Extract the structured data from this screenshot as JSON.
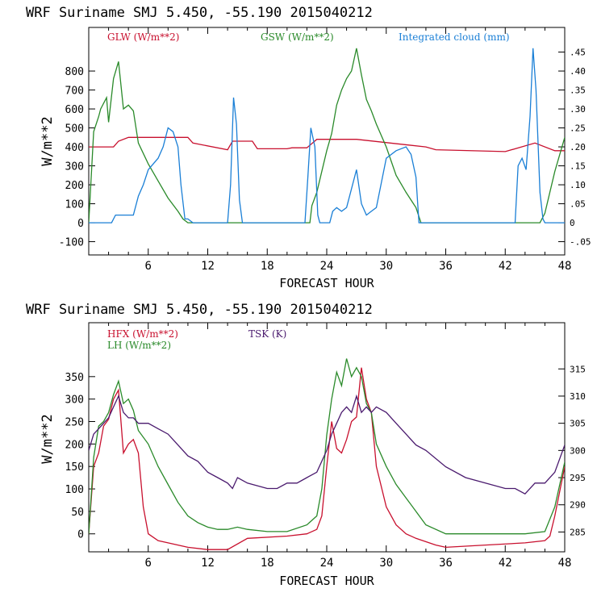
{
  "chart_data": [
    {
      "type": "line",
      "title": "WRF   Suriname SMJ   5.450, -55.190  2015040212",
      "xlabel": "FORECAST HOUR",
      "ylabel": "W/m**2",
      "xlim": [
        0,
        48
      ],
      "ylim": [
        -170,
        1030
      ],
      "y2lim": [
        -0.085,
        0.515
      ],
      "x_ticks": [
        6,
        12,
        18,
        24,
        30,
        36,
        42,
        48
      ],
      "x_tick_labels": [
        "6",
        "12",
        "18",
        "24",
        "30",
        "36",
        "42",
        "48"
      ],
      "y_ticks": [
        800,
        700,
        600,
        500,
        400,
        300,
        200,
        100,
        0,
        -100
      ],
      "y_tick_labels": [
        "800",
        "700",
        "600",
        "500",
        "400",
        "300",
        "200",
        "100",
        "0",
        "-100"
      ],
      "y2_ticks": [
        0.45,
        0.4,
        0.35,
        0.3,
        0.25,
        0.2,
        0.15,
        0.1,
        0.05,
        0,
        -0.05
      ],
      "y2_tick_labels": [
        ".45",
        ".40",
        ".35",
        ".30",
        ".25",
        ".20",
        ".15",
        ".10",
        ".05",
        "0",
        "-.05"
      ],
      "series": [
        {
          "name": "GLW (W/m**2)",
          "color": "#c8102e",
          "axis": "left",
          "x": [
            0,
            2.5,
            3,
            4,
            10,
            10.5,
            14,
            14.5,
            16.5,
            17,
            20,
            20.5,
            22,
            23,
            26,
            27,
            34,
            35,
            42,
            45,
            47,
            48
          ],
          "y": [
            400,
            400,
            430,
            450,
            450,
            420,
            385,
            430,
            430,
            390,
            390,
            395,
            395,
            440,
            440,
            440,
            400,
            385,
            375,
            420,
            380,
            380
          ]
        },
        {
          "name": "GSW (W/m**2)",
          "color": "#2a8a2a",
          "axis": "left",
          "x": [
            0,
            0.5,
            1,
            1.2,
            1.8,
            2,
            2.5,
            3,
            3.5,
            4,
            4.5,
            5,
            6,
            7,
            8,
            9,
            9.5,
            10,
            22.3,
            22.5,
            23,
            24,
            24.5,
            25,
            25.5,
            26,
            26.5,
            27,
            27.5,
            28,
            28.5,
            29,
            30,
            31,
            32,
            33,
            33.5,
            45.5,
            46,
            47,
            48
          ],
          "y": [
            0,
            480,
            560,
            600,
            660,
            530,
            760,
            850,
            600,
            620,
            590,
            420,
            310,
            220,
            130,
            60,
            20,
            0,
            0,
            90,
            160,
            380,
            470,
            620,
            700,
            760,
            800,
            920,
            780,
            650,
            590,
            520,
            400,
            250,
            160,
            80,
            0,
            0,
            50,
            270,
            450
          ]
        },
        {
          "name": "Integrated cloud (mm)",
          "color": "#1a7fd6",
          "axis": "right",
          "x": [
            0,
            2.3,
            2.7,
            3.5,
            4.5,
            5,
            5.5,
            6,
            7,
            7.5,
            8,
            8.5,
            9,
            9.3,
            9.7,
            10,
            10.5,
            14,
            14.3,
            14.6,
            14.9,
            15.2,
            15.5,
            21.8,
            22.1,
            22.4,
            22.8,
            23.1,
            23.3,
            24.3,
            24.6,
            25,
            25.5,
            26,
            27,
            27.5,
            28,
            28.5,
            29,
            30,
            31,
            32,
            32.5,
            33,
            33.3,
            43,
            43.3,
            43.7,
            44.1,
            44.5,
            44.8,
            45.1,
            45.5,
            45.8,
            46,
            48
          ],
          "y": [
            0,
            0,
            0.02,
            0.02,
            0.02,
            0.07,
            0.1,
            0.14,
            0.17,
            0.2,
            0.25,
            0.24,
            0.2,
            0.1,
            0.01,
            0.01,
            0,
            0,
            0.1,
            0.33,
            0.26,
            0.06,
            0,
            0,
            0.12,
            0.25,
            0.2,
            0.02,
            0,
            0,
            0.03,
            0.04,
            0.03,
            0.04,
            0.14,
            0.05,
            0.02,
            0.03,
            0.04,
            0.17,
            0.19,
            0.2,
            0.18,
            0.12,
            0,
            0,
            0.15,
            0.17,
            0.14,
            0.28,
            0.46,
            0.35,
            0.08,
            0.01,
            0,
            0
          ]
        }
      ]
    },
    {
      "type": "line",
      "title": "WRF   Suriname SMJ   5.450, -55.190  2015040212",
      "xlabel": "FORECAST HOUR",
      "ylabel": "W/m**2",
      "xlim": [
        0,
        48
      ],
      "ylim": [
        -40,
        470
      ],
      "y2lim": [
        281.35,
        323.5
      ],
      "x_ticks": [
        6,
        12,
        18,
        24,
        30,
        36,
        42,
        48
      ],
      "x_tick_labels": [
        "6",
        "12",
        "18",
        "24",
        "30",
        "36",
        "42",
        "48"
      ],
      "y_ticks": [
        350,
        300,
        250,
        200,
        150,
        100,
        50,
        0
      ],
      "y_tick_labels": [
        "350",
        "300",
        "250",
        "200",
        "150",
        "100",
        "50",
        "0"
      ],
      "y2_ticks": [
        315,
        310,
        305,
        300,
        295,
        290,
        285
      ],
      "y2_tick_labels": [
        "315",
        "310",
        "305",
        "300",
        "295",
        "290",
        "285"
      ],
      "series": [
        {
          "name": "HFX (W/m**2)",
          "color": "#c8102e",
          "axis": "left",
          "x": [
            0,
            0.5,
            1,
            1.5,
            2,
            2.5,
            3,
            3.5,
            4,
            4.5,
            5,
            5.5,
            6,
            7,
            8,
            9,
            10,
            12,
            14,
            16,
            20,
            22,
            23,
            23.5,
            24,
            24.5,
            25,
            25.5,
            26,
            26.5,
            27,
            27.5,
            28,
            28.5,
            29,
            30,
            31,
            32,
            33,
            35,
            36,
            40,
            44,
            46,
            46.5,
            47,
            48
          ],
          "y": [
            0,
            150,
            180,
            240,
            255,
            300,
            320,
            180,
            200,
            210,
            180,
            60,
            0,
            -15,
            -20,
            -25,
            -30,
            -35,
            -35,
            -10,
            -5,
            0,
            10,
            40,
            150,
            250,
            190,
            180,
            210,
            250,
            260,
            370,
            300,
            270,
            150,
            60,
            20,
            0,
            -10,
            -25,
            -30,
            -25,
            -20,
            -15,
            -5,
            40,
            150
          ]
        },
        {
          "name": "LH (W/m**2)",
          "color": "#2a8a2a",
          "axis": "left",
          "x": [
            0,
            0.5,
            1,
            1.5,
            2,
            2.5,
            3,
            3.5,
            4,
            4.5,
            5,
            6,
            7,
            8,
            9,
            10,
            11,
            12,
            13,
            14,
            15,
            16,
            18,
            20,
            22,
            23,
            23.5,
            24,
            24.5,
            25,
            25.5,
            26,
            26.5,
            27,
            27.5,
            28,
            28.5,
            29,
            30,
            31,
            32,
            33,
            34,
            36,
            40,
            44,
            46,
            47,
            48
          ],
          "y": [
            0,
            170,
            240,
            250,
            270,
            310,
            340,
            290,
            300,
            275,
            230,
            200,
            150,
            110,
            70,
            40,
            25,
            15,
            10,
            10,
            15,
            10,
            5,
            5,
            20,
            40,
            100,
            220,
            300,
            360,
            330,
            390,
            350,
            370,
            350,
            290,
            270,
            200,
            150,
            110,
            80,
            50,
            20,
            0,
            0,
            0,
            5,
            60,
            160
          ]
        },
        {
          "name": "TSK (K)",
          "color": "#4a1a6e",
          "axis": "right",
          "x": [
            0,
            0.5,
            1,
            1.5,
            2,
            2.5,
            3,
            3.5,
            4,
            4.5,
            5,
            6,
            7,
            8,
            9,
            10,
            11,
            12,
            13,
            14,
            14.5,
            15,
            16,
            18,
            19,
            20,
            21,
            22,
            23,
            24,
            24.5,
            25,
            25.5,
            26,
            26.5,
            27,
            27.5,
            28,
            28.5,
            29,
            30,
            31,
            32,
            33,
            34,
            36,
            38,
            40,
            42,
            43,
            44,
            45,
            46,
            47,
            48
          ],
          "y": [
            300,
            303,
            304,
            305,
            306,
            308,
            310,
            307,
            306,
            306,
            305,
            305,
            304,
            303,
            301,
            299,
            298,
            296,
            295,
            294,
            293,
            295,
            294,
            293,
            293,
            294,
            294,
            295,
            296,
            300,
            303,
            305,
            307,
            308,
            307,
            310,
            307,
            308,
            307,
            308,
            307,
            305,
            303,
            301,
            300,
            297,
            295,
            294,
            293,
            293,
            292,
            294,
            294,
            296,
            301
          ]
        }
      ]
    }
  ]
}
